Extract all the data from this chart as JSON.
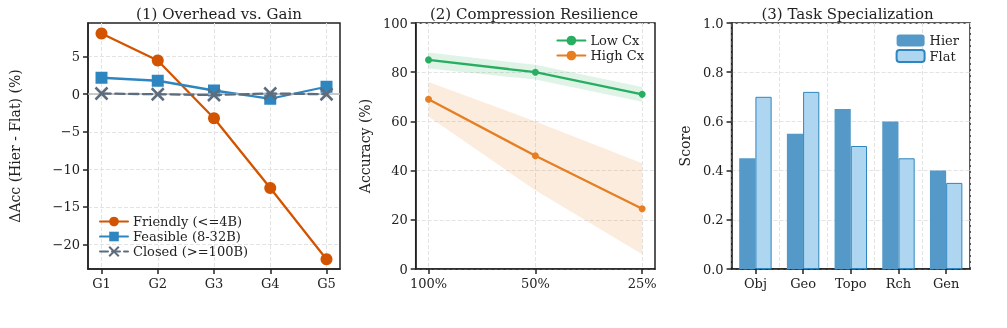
{
  "chart_data": [
    {
      "type": "line",
      "title": "(1) Overhead vs. Gain",
      "ylabel": "ΔAcc (Hier - Flat) (%)",
      "categories": [
        "G1",
        "G2",
        "G3",
        "G4",
        "G5"
      ],
      "series": [
        {
          "name": "Friendly (<=4B)",
          "color": "#d35400",
          "marker": "circle",
          "line_style": "solid",
          "values": [
            8.1,
            4.5,
            -3.2,
            -12.5,
            -22
          ]
        },
        {
          "name": "Feasible (8-32B)",
          "color": "#2e86c1",
          "marker": "square",
          "line_style": "solid",
          "values": [
            2.2,
            1.8,
            0.5,
            -0.6,
            1.0
          ]
        },
        {
          "name": "Closed (>=100B)",
          "color": "#5d6d7e",
          "marker": "cross",
          "line_style": "dashed",
          "values": [
            0.1,
            0,
            -0.1,
            0.1,
            0
          ]
        }
      ],
      "ylim": [
        -23.3,
        9.5
      ],
      "yticks": [
        {
          "value": -20,
          "label": "−20"
        },
        {
          "value": -15,
          "label": "−15"
        },
        {
          "value": -10,
          "label": "−10"
        },
        {
          "value": -5,
          "label": "−5"
        },
        0,
        5
      ],
      "ref_lines": [
        {
          "axis": "y",
          "value": 0,
          "label": null,
          "color": "#bbbbbb"
        }
      ],
      "grid": true,
      "legend": "bottom left"
    },
    {
      "type": "line",
      "title": "(2) Compression Resilience",
      "ylabel": "Accuracy (%)",
      "categories": [
        "100%",
        "50%",
        "25%"
      ],
      "series": [
        {
          "name": "Low Cx",
          "color": "#27ae60",
          "marker": "circle",
          "values": [
            85,
            80,
            71
          ],
          "lower": [
            81.5,
            77,
            68
          ],
          "upper": [
            88,
            83,
            74
          ]
        },
        {
          "name": "High Cx",
          "color": "#e67e22",
          "marker": "circle",
          "values": [
            69,
            46,
            24.5
          ],
          "lower": [
            62,
            32,
            6
          ],
          "upper": [
            76,
            60,
            43
          ]
        }
      ],
      "ylim": [
        0,
        100
      ],
      "yticks": [
        0,
        20,
        40,
        60,
        80,
        100
      ],
      "grid": true,
      "legend": "top right"
    },
    {
      "type": "bar",
      "title": "(3) Task Specialization",
      "ylabel": "Score",
      "categories": [
        "Obj",
        "Geo",
        "Topo",
        "Rch",
        "Gen"
      ],
      "series": [
        {
          "name": "Hier",
          "color": "#5499c7",
          "values": [
            0.45,
            0.55,
            0.65,
            0.6,
            0.4
          ]
        },
        {
          "name": "Flat",
          "color": "#aed6f1",
          "values": [
            0.7,
            0.72,
            0.5,
            0.45,
            0.35
          ]
        }
      ],
      "ylim": [
        0,
        1
      ],
      "yticks": [
        {
          "value": 0,
          "label": "0.0"
        },
        {
          "value": 0.2,
          "label": "0.2"
        },
        {
          "value": 0.4,
          "label": "0.4"
        },
        {
          "value": 0.6,
          "label": "0.6"
        },
        {
          "value": 0.8,
          "label": "0.8"
        },
        {
          "value": 1,
          "label": "1.0"
        }
      ],
      "grid": true,
      "legend": "top right"
    }
  ]
}
